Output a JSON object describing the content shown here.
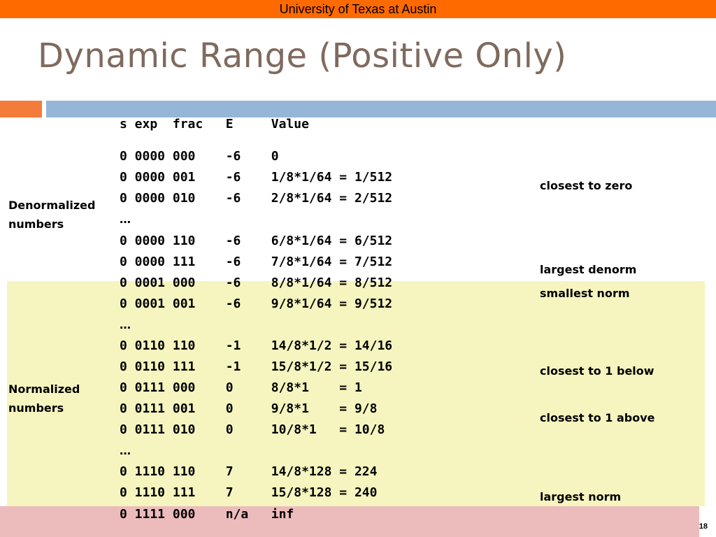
{
  "header": {
    "institution": "University of Texas at Austin"
  },
  "slide": {
    "title": "Dynamic Range (Positive Only)",
    "page_number": "18"
  },
  "table": {
    "header": "s exp  frac   E     Value",
    "rows": [
      "0 0000 000    -6    0",
      "0 0000 001    -6    1/8*1/64 = 1/512",
      "0 0000 010    -6    2/8*1/64 = 2/512",
      "0 0000 110    -6    6/8*1/64 = 6/512",
      "0 0000 111    -6    7/8*1/64 = 7/512",
      "0 0001 000    -6    8/8*1/64 = 8/512",
      "0 0001 001    -6    9/8*1/64 = 9/512",
      "0 0110 110    -1    14/8*1/2 = 14/16",
      "0 0110 111    -1    15/8*1/2 = 15/16",
      "0 0111 000    0     8/8*1    = 1",
      "0 0111 001    0     9/8*1    = 9/8",
      "0 0111 010    0     10/8*1   = 10/8",
      "0 1110 110    7     14/8*128 = 224",
      "0 1110 111    7     15/8*128 = 240",
      "0 1111 000    n/a   inf"
    ],
    "ellipsis": "…"
  },
  "labels": {
    "denormalized": [
      "Denormalized",
      "numbers"
    ],
    "normalized": [
      "Normalized",
      "numbers"
    ]
  },
  "notes": {
    "closest_to_zero": "closest to zero",
    "largest_denorm": "largest denorm",
    "smallest_norm": "smallest norm",
    "closest_to_1_below": "closest to 1 below",
    "closest_to_1_above": "closest to 1 above",
    "largest_norm": "largest norm"
  },
  "colors": {
    "top_bar": "#ff6a00",
    "title": "#7f6a5d",
    "accent_orange": "#f47b3a",
    "accent_blue": "#95b6d6",
    "normalized_band": "#f6f5bf",
    "special_band": "#ecbcbc"
  }
}
